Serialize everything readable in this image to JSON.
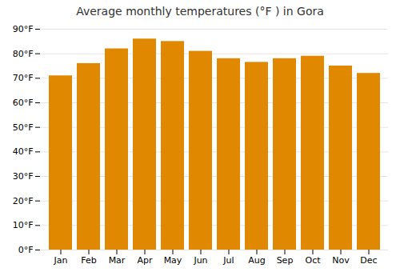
{
  "chart_data": {
    "type": "bar",
    "title": "Average monthly temperatures (°F ) in Gora",
    "categories": [
      "Jan",
      "Feb",
      "Mar",
      "Apr",
      "May",
      "Jun",
      "Jul",
      "Aug",
      "Sep",
      "Oct",
      "Nov",
      "Dec"
    ],
    "values": [
      71,
      76,
      82,
      86,
      85,
      81,
      78,
      76.5,
      78,
      79,
      75,
      72
    ],
    "color": "#E08800",
    "ylim": [
      0,
      90
    ],
    "yticks": [
      {
        "value": 0,
        "label": "0°F"
      },
      {
        "value": 10,
        "label": "10°F"
      },
      {
        "value": 20,
        "label": "20°F"
      },
      {
        "value": 30,
        "label": "30°F"
      },
      {
        "value": 40,
        "label": "40°F"
      },
      {
        "value": 50,
        "label": "50°F"
      },
      {
        "value": 60,
        "label": "60°F"
      },
      {
        "value": 70,
        "label": "70°F"
      },
      {
        "value": 80,
        "label": "80°F"
      },
      {
        "value": 90,
        "label": "90°F"
      }
    ],
    "grid": true
  }
}
